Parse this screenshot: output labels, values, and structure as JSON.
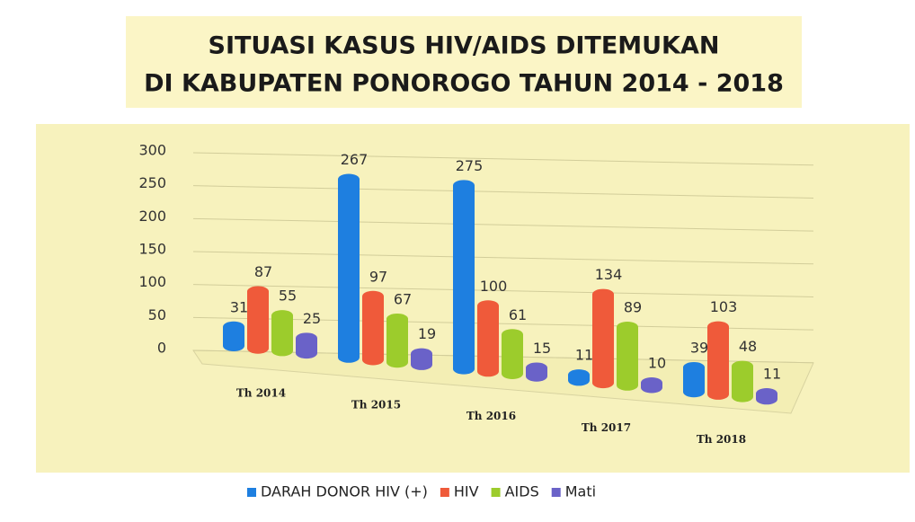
{
  "chart_data": {
    "type": "bar",
    "title": [
      "SITUASI KASUS HIV/AIDS DITEMUKAN",
      "DI KABUPATEN PONOROGO TAHUN 2014 - 2018"
    ],
    "categories": [
      "Th 2014",
      "Th 2015",
      "Th 2016",
      "Th 2017",
      "Th 2018"
    ],
    "series": [
      {
        "name": "DARAH DONOR HIV (+)",
        "color": "#1e7fe0",
        "values": [
          31,
          267,
          275,
          11,
          39
        ]
      },
      {
        "name": "HIV",
        "color": "#ef5a3a",
        "values": [
          87,
          97,
          100,
          134,
          103
        ]
      },
      {
        "name": "AIDS",
        "color": "#9ccc2c",
        "values": [
          55,
          67,
          61,
          89,
          48
        ]
      },
      {
        "name": "Mati",
        "color": "#6a62c8",
        "values": [
          25,
          19,
          15,
          10,
          11
        ]
      }
    ],
    "ylim": [
      0,
      300
    ],
    "yticks": [
      0,
      50,
      100,
      150,
      200,
      250,
      300
    ],
    "grid": true,
    "legend": "bottom"
  }
}
